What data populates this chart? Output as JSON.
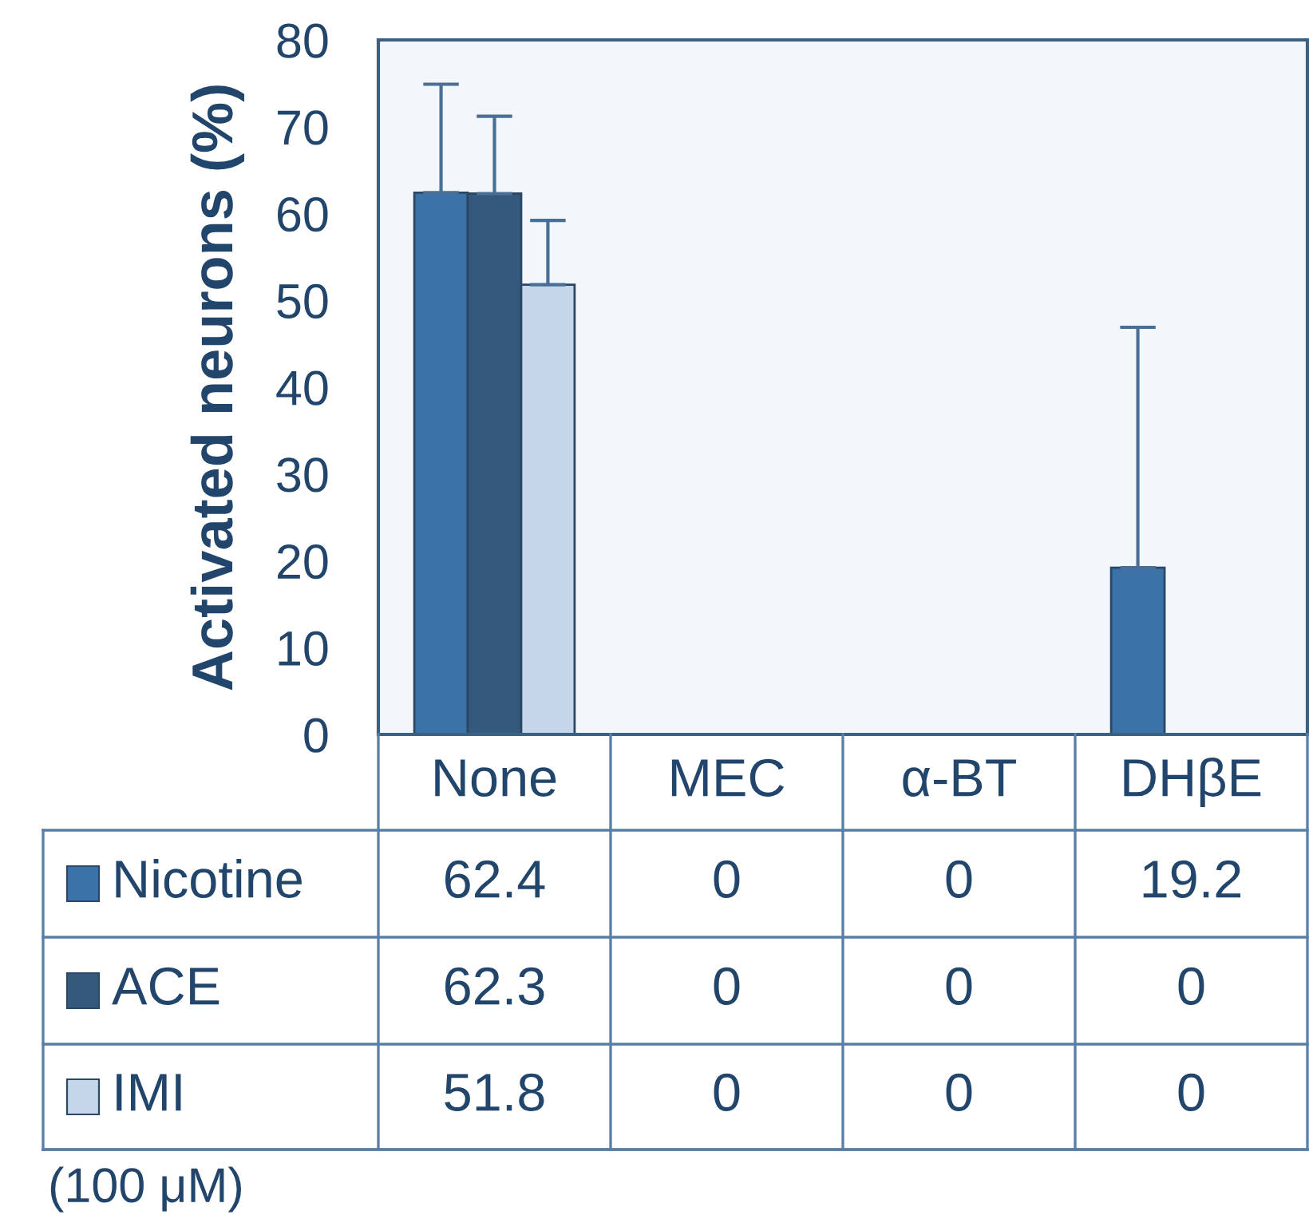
{
  "chart_data": {
    "type": "bar",
    "ylabel": "Activated neurons (%)",
    "categories": [
      "None",
      "MEC",
      "α-BT",
      "DHβE"
    ],
    "series": [
      {
        "name": "Nicotine",
        "color": "#3b72a8",
        "values": [
          62.4,
          0,
          0,
          19.2
        ],
        "errors": [
          [
            62.4,
            74.9
          ],
          null,
          null,
          [
            19.2,
            46.9
          ]
        ]
      },
      {
        "name": "ACE",
        "color": "#35597c",
        "values": [
          62.3,
          0,
          0,
          0
        ],
        "errors": [
          [
            62.3,
            71.2
          ],
          null,
          null,
          null
        ]
      },
      {
        "name": "IMI",
        "color": "#c6d6e9",
        "values": [
          51.8,
          0,
          0,
          0
        ],
        "errors": [
          [
            51.8,
            59.2
          ],
          null,
          null,
          null
        ]
      }
    ],
    "ylim": [
      0,
      80
    ],
    "yticks": [
      0,
      10,
      20,
      30,
      40,
      50,
      60,
      70,
      80
    ],
    "grid": false,
    "legend": "bottom",
    "data_labels": true,
    "annotations": [
      "(100 μM)"
    ]
  }
}
